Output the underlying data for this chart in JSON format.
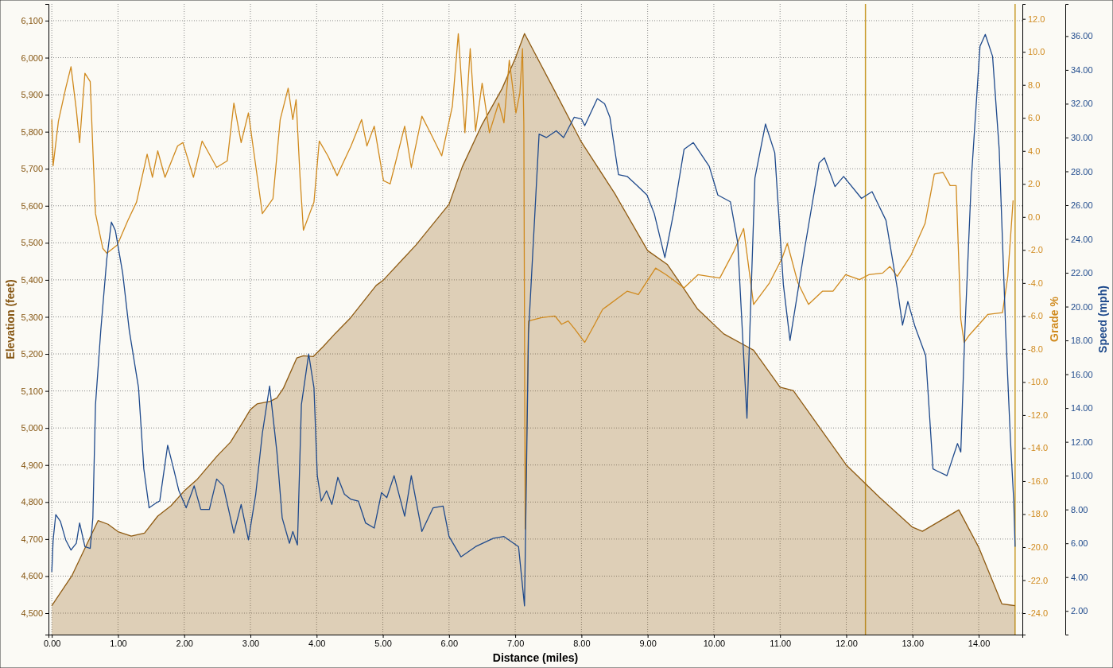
{
  "chart_data": {
    "type": "line",
    "xlabel": "Distance (miles)",
    "ylabel": "Elevation (feet)",
    "y2label": "Grade %",
    "y3label": "Speed (mph)",
    "xlim": [
      -0.05,
      14.66
    ],
    "ylim": [
      4442,
      6145
    ],
    "y2lim": [
      -25.3,
      12.9
    ],
    "y3lim": [
      0.6,
      37.9
    ],
    "xticks": [
      {
        "value": 0,
        "label": "0.00"
      },
      {
        "value": 1,
        "label": "1.00"
      },
      {
        "value": 2,
        "label": "2.00"
      },
      {
        "value": 3,
        "label": "3.00"
      },
      {
        "value": 4,
        "label": "4.00"
      },
      {
        "value": 5,
        "label": "5.00"
      },
      {
        "value": 6,
        "label": "6.00"
      },
      {
        "value": 7,
        "label": "7.00"
      },
      {
        "value": 8,
        "label": "8.00"
      },
      {
        "value": 9,
        "label": "9.00"
      },
      {
        "value": 10,
        "label": "10.00"
      },
      {
        "value": 11,
        "label": "11.00"
      },
      {
        "value": 12,
        "label": "12.00"
      },
      {
        "value": 13,
        "label": "13.00"
      },
      {
        "value": 14,
        "label": "14.00"
      }
    ],
    "yticks": [
      {
        "value": 4500,
        "label": "4,500"
      },
      {
        "value": 4600,
        "label": "4,600"
      },
      {
        "value": 4700,
        "label": "4,700"
      },
      {
        "value": 4800,
        "label": "4,800"
      },
      {
        "value": 4900,
        "label": "4,900"
      },
      {
        "value": 5000,
        "label": "5,000"
      },
      {
        "value": 5100,
        "label": "5,100"
      },
      {
        "value": 5200,
        "label": "5,200"
      },
      {
        "value": 5300,
        "label": "5,300"
      },
      {
        "value": 5400,
        "label": "5,400"
      },
      {
        "value": 5500,
        "label": "5,500"
      },
      {
        "value": 5600,
        "label": "5,600"
      },
      {
        "value": 5700,
        "label": "5,700"
      },
      {
        "value": 5800,
        "label": "5,800"
      },
      {
        "value": 5900,
        "label": "5,900"
      },
      {
        "value": 6000,
        "label": "6,000"
      },
      {
        "value": 6100,
        "label": "6,100"
      }
    ],
    "y2ticks": [
      {
        "value": -24,
        "label": "-24.0"
      },
      {
        "value": -22,
        "label": "-22.0"
      },
      {
        "value": -20,
        "label": "-20.0"
      },
      {
        "value": -18,
        "label": "-18.0"
      },
      {
        "value": -16,
        "label": "-16.0"
      },
      {
        "value": -14,
        "label": "-14.0"
      },
      {
        "value": -12,
        "label": "-12.0"
      },
      {
        "value": -10,
        "label": "-10.0"
      },
      {
        "value": -8,
        "label": "-8.0"
      },
      {
        "value": -6,
        "label": "-6.0"
      },
      {
        "value": -4,
        "label": "-4.0"
      },
      {
        "value": -2,
        "label": "-2.0"
      },
      {
        "value": 0,
        "label": "0.0"
      },
      {
        "value": 2,
        "label": "2.0"
      },
      {
        "value": 4,
        "label": "4.0"
      },
      {
        "value": 6,
        "label": "6.0"
      },
      {
        "value": 8,
        "label": "8.0"
      },
      {
        "value": 10,
        "label": "10.0"
      },
      {
        "value": 12,
        "label": "12.0"
      }
    ],
    "y3ticks": [
      {
        "value": 2,
        "label": "2.00"
      },
      {
        "value": 4,
        "label": "4.00"
      },
      {
        "value": 6,
        "label": "6.00"
      },
      {
        "value": 8,
        "label": "8.00"
      },
      {
        "value": 10,
        "label": "10.00"
      },
      {
        "value": 12,
        "label": "12.00"
      },
      {
        "value": 14,
        "label": "14.00"
      },
      {
        "value": 16,
        "label": "16.00"
      },
      {
        "value": 18,
        "label": "18.00"
      },
      {
        "value": 20,
        "label": "20.00"
      },
      {
        "value": 22,
        "label": "22.00"
      },
      {
        "value": 24,
        "label": "24.00"
      },
      {
        "value": 26,
        "label": "26.00"
      },
      {
        "value": 28,
        "label": "28.00"
      },
      {
        "value": 30,
        "label": "30.00"
      },
      {
        "value": 32,
        "label": "32.00"
      },
      {
        "value": 34,
        "label": "34.00"
      },
      {
        "value": 36,
        "label": "36.00"
      }
    ],
    "grid": true,
    "marker": "none",
    "line_style": "solid",
    "series": [
      {
        "type": "area",
        "axis": "y",
        "color": "#8f5b12",
        "x": [
          0,
          0.3,
          0.5,
          0.7,
          0.85,
          1.0,
          1.2,
          1.4,
          1.6,
          1.8,
          2.0,
          2.2,
          2.5,
          2.7,
          2.9,
          3.0,
          3.1,
          3.3,
          3.4,
          3.5,
          3.7,
          3.8,
          3.95,
          4.1,
          4.28,
          4.5,
          4.9,
          5.0,
          5.5,
          6.0,
          6.2,
          6.5,
          6.8,
          7.0,
          7.14,
          7.62,
          8.0,
          8.5,
          9.0,
          9.3,
          9.5,
          9.75,
          10.15,
          10.5,
          10.6,
          11.0,
          11.2,
          12.0,
          12.5,
          13.0,
          13.15,
          13.7,
          14.0,
          14.35,
          14.55
        ],
        "values": [
          4520,
          4600,
          4675,
          4750,
          4740,
          4720,
          4708,
          4716,
          4762,
          4790,
          4830,
          4862,
          4925,
          4962,
          5020,
          5050,
          5065,
          5072,
          5081,
          5108,
          5189,
          5195,
          5193,
          5220,
          5255,
          5295,
          5385,
          5398,
          5494,
          5604,
          5705,
          5820,
          5916,
          5998,
          6065,
          5902,
          5772,
          5634,
          5479,
          5441,
          5389,
          5322,
          5254,
          5220,
          5210,
          5110,
          5101,
          4900,
          4813,
          4732,
          4721,
          4779,
          4678,
          4525,
          4520
        ]
      },
      {
        "axis": "y2",
        "color": "#d08a1e",
        "x": [
          0,
          0.02,
          0.1,
          0.21,
          0.29,
          0.37,
          0.42,
          0.5,
          0.58,
          0.62,
          0.66,
          0.77,
          0.83,
          0.99,
          1.15,
          1.28,
          1.44,
          1.52,
          1.6,
          1.71,
          1.9,
          1.98,
          2.14,
          2.27,
          2.49,
          2.65,
          2.75,
          2.86,
          2.97,
          3.18,
          3.34,
          3.45,
          3.57,
          3.64,
          3.69,
          3.75,
          3.8,
          3.96,
          4.04,
          4.17,
          4.31,
          4.52,
          4.68,
          4.76,
          4.87,
          5.01,
          5.11,
          5.33,
          5.43,
          5.59,
          5.73,
          5.89,
          6.05,
          6.14,
          6.24,
          6.32,
          6.4,
          6.5,
          6.61,
          6.75,
          6.83,
          6.91,
          7.01,
          7.07,
          7.11,
          7.13,
          7.15,
          7.2,
          7.4,
          7.6,
          7.7,
          7.8,
          7.9,
          8.05,
          8.2,
          8.32,
          8.69,
          8.86,
          9.12,
          9.28,
          9.55,
          9.76,
          9.93,
          10.09,
          10.3,
          10.45,
          10.6,
          10.84,
          11.03,
          11.11,
          11.27,
          11.43,
          11.64,
          11.8,
          11.99,
          12.2,
          12.34,
          12.55,
          12.66,
          12.77,
          12.98,
          13.19,
          13.33,
          13.46,
          13.57,
          13.66,
          13.73,
          13.78,
          13.85,
          14.14,
          14.36,
          14.44,
          14.52
        ],
        "values": [
          5.9,
          3.1,
          5.8,
          7.8,
          9.1,
          6.5,
          4.5,
          8.7,
          8.2,
          4.1,
          0.2,
          -1.9,
          -2.2,
          -1.7,
          -0.2,
          0.9,
          3.8,
          2.4,
          4.0,
          2.4,
          4.3,
          4.5,
          2.4,
          4.6,
          3.0,
          3.4,
          6.9,
          4.5,
          6.3,
          0.2,
          1.1,
          5.9,
          7.8,
          5.9,
          7.1,
          2.4,
          -0.8,
          0.9,
          4.6,
          3.7,
          2.5,
          4.3,
          5.9,
          4.3,
          5.5,
          2.2,
          2.0,
          5.5,
          3.0,
          6.1,
          5.0,
          3.7,
          6.7,
          11.1,
          5.1,
          10.2,
          5.2,
          8.1,
          5.1,
          6.9,
          5.7,
          9.5,
          6.3,
          7.5,
          10.2,
          5.6,
          -18.9,
          -6.3,
          -6.1,
          -6.0,
          -6.5,
          -6.3,
          -6.8,
          -7.6,
          -6.5,
          -5.6,
          -4.5,
          -4.7,
          -3.1,
          -3.5,
          -4.3,
          -3.5,
          -3.6,
          -3.7,
          -2.1,
          -0.7,
          -5.3,
          -4.0,
          -2.5,
          -1.6,
          -4.0,
          -5.3,
          -4.5,
          -4.5,
          -3.5,
          -3.8,
          -3.5,
          -3.4,
          -3.0,
          -3.6,
          -2.3,
          -0.4,
          2.6,
          2.7,
          1.9,
          1.9,
          -6.2,
          -7.6,
          -7.2,
          -5.9,
          -5.8,
          -3.6,
          1.0
        ]
      },
      {
        "axis": "y3",
        "color": "#1f4a8c",
        "x": [
          0,
          0.02,
          0.06,
          0.13,
          0.21,
          0.29,
          0.37,
          0.42,
          0.5,
          0.58,
          0.62,
          0.66,
          0.74,
          0.83,
          0.9,
          0.96,
          1.07,
          1.17,
          1.31,
          1.39,
          1.47,
          1.58,
          1.63,
          1.75,
          1.84,
          1.92,
          2.03,
          2.15,
          2.25,
          2.38,
          2.49,
          2.59,
          2.75,
          2.86,
          2.97,
          3.08,
          3.18,
          3.29,
          3.4,
          3.48,
          3.59,
          3.64,
          3.71,
          3.77,
          3.88,
          3.96,
          4.01,
          4.07,
          4.15,
          4.23,
          4.32,
          4.42,
          4.52,
          4.63,
          4.74,
          4.87,
          4.98,
          5.06,
          5.17,
          5.33,
          5.43,
          5.59,
          5.76,
          5.91,
          6.0,
          6.18,
          6.4,
          6.67,
          6.83,
          7.05,
          7.14,
          7.2,
          7.36,
          7.47,
          7.62,
          7.73,
          7.89,
          8.0,
          8.05,
          8.24,
          8.35,
          8.43,
          8.56,
          8.69,
          8.83,
          8.99,
          9.1,
          9.26,
          9.39,
          9.55,
          9.69,
          9.93,
          10.06,
          10.25,
          10.36,
          10.5,
          10.62,
          10.78,
          10.92,
          11.05,
          11.15,
          11.37,
          11.59,
          11.67,
          11.83,
          11.96,
          12.23,
          12.39,
          12.6,
          12.77,
          12.85,
          12.93,
          13.04,
          13.2,
          13.31,
          13.36,
          13.52,
          13.68,
          13.73,
          13.79,
          13.89,
          14.02,
          14.1,
          14.21,
          14.31,
          14.41,
          14.48,
          14.53,
          14.55
        ],
        "values": [
          4.3,
          6.2,
          7.7,
          7.3,
          6.2,
          5.6,
          6.0,
          7.2,
          5.8,
          5.7,
          7.5,
          14.2,
          18.6,
          22.8,
          25.0,
          24.5,
          22.0,
          18.6,
          15.2,
          10.4,
          8.1,
          8.4,
          8.5,
          11.8,
          10.4,
          9.1,
          8.1,
          9.4,
          8.0,
          8.0,
          9.8,
          9.4,
          6.6,
          8.3,
          6.2,
          8.9,
          12.5,
          15.3,
          11.4,
          7.5,
          6.0,
          6.7,
          5.9,
          14.2,
          17.2,
          15.2,
          10.0,
          8.5,
          9.1,
          8.3,
          9.9,
          8.9,
          8.6,
          8.5,
          7.2,
          6.9,
          9.0,
          8.7,
          10.0,
          7.6,
          10.0,
          6.7,
          8.1,
          8.2,
          6.4,
          5.2,
          5.8,
          6.3,
          6.4,
          5.8,
          2.3,
          18.4,
          30.2,
          30.0,
          30.4,
          30.0,
          31.2,
          31.1,
          30.7,
          32.3,
          32.0,
          31.2,
          27.8,
          27.7,
          27.2,
          26.6,
          25.5,
          22.9,
          25.5,
          29.3,
          29.7,
          28.3,
          26.6,
          26.2,
          23.8,
          13.4,
          27.6,
          30.8,
          29.1,
          21.3,
          18.0,
          23.4,
          28.5,
          28.8,
          27.1,
          27.7,
          26.4,
          26.8,
          25.1,
          21.1,
          18.9,
          20.3,
          18.8,
          17.1,
          10.4,
          10.3,
          10.0,
          11.9,
          11.4,
          18.4,
          27.6,
          35.4,
          36.1,
          34.8,
          29.3,
          18.4,
          12.1,
          8.5,
          5.8
        ]
      }
    ],
    "ref_lines": [
      {
        "axis": "x",
        "value": 12.29,
        "color": "#c89b2a"
      },
      {
        "axis": "x",
        "value": 14.55,
        "color": "#c89b2a"
      }
    ]
  }
}
